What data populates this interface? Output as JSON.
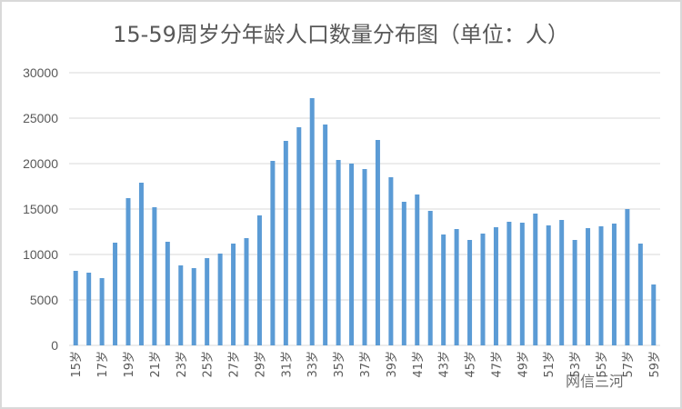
{
  "chart_data": {
    "type": "bar",
    "title": "15-59周岁分年龄人口数量分布图（单位：人）",
    "xlabel": "",
    "ylabel": "",
    "ylim": [
      0,
      30000
    ],
    "yticks": [
      0,
      5000,
      10000,
      15000,
      20000,
      25000,
      30000
    ],
    "grid": true,
    "color": "#5b9bd5",
    "categories": [
      "15岁",
      "16岁",
      "17岁",
      "18岁",
      "19岁",
      "20岁",
      "21岁",
      "22岁",
      "23岁",
      "24岁",
      "25岁",
      "26岁",
      "27岁",
      "28岁",
      "29岁",
      "30岁",
      "31岁",
      "32岁",
      "33岁",
      "34岁",
      "35岁",
      "36岁",
      "37岁",
      "38岁",
      "39岁",
      "40岁",
      "41岁",
      "42岁",
      "43岁",
      "44岁",
      "45岁",
      "46岁",
      "47岁",
      "48岁",
      "49岁",
      "50岁",
      "51岁",
      "52岁",
      "53岁",
      "54岁",
      "55岁",
      "56岁",
      "57岁",
      "58岁",
      "59岁"
    ],
    "values": [
      8200,
      8000,
      7400,
      11300,
      16200,
      17900,
      15200,
      11400,
      8800,
      8500,
      9600,
      10100,
      11200,
      11800,
      14300,
      20300,
      22500,
      24000,
      27200,
      24300,
      20400,
      20000,
      19400,
      22600,
      18500,
      15800,
      16600,
      14800,
      12200,
      12800,
      11600,
      12300,
      13000,
      13600,
      13500,
      14500,
      13200,
      13800,
      11600,
      12900,
      13100,
      13400,
      15000,
      11200,
      6700
    ]
  },
  "watermark": "网信三河"
}
